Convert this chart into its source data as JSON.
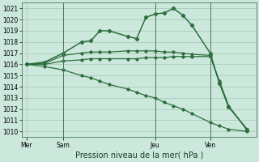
{
  "background_color": "#cce8dc",
  "grid_color": "#aaccbc",
  "line_color": "#2d6e3e",
  "title": "Pression niveau de la mer( hPa )",
  "ylim": [
    1009.5,
    1021.5
  ],
  "yticks": [
    1010,
    1011,
    1012,
    1013,
    1014,
    1015,
    1016,
    1017,
    1018,
    1019,
    1020,
    1021
  ],
  "day_labels": [
    "Mer",
    "Sam",
    "Jeu",
    "Ven"
  ],
  "day_positions": [
    0,
    4,
    14,
    20
  ],
  "xlim": [
    -0.5,
    25
  ],
  "vline_positions": [
    4,
    14,
    20
  ],
  "vline_color": "#4a7a5a",
  "tick_fontsize": 5.5,
  "label_fontsize": 7,
  "series": [
    {
      "x": [
        0,
        2,
        4,
        6,
        7,
        8,
        9,
        11,
        12,
        13,
        14,
        15,
        16,
        17,
        18,
        20,
        21,
        22,
        24
      ],
      "y": [
        1016.0,
        1016.2,
        1017.0,
        1018.0,
        1018.1,
        1019.0,
        1019.0,
        1018.5,
        1018.3,
        1020.2,
        1020.5,
        1020.6,
        1021.0,
        1020.4,
        1019.5,
        1017.0,
        1014.3,
        1012.2,
        1010.2
      ],
      "marker": "D",
      "markersize": 2.2,
      "linewidth": 1.1
    },
    {
      "x": [
        0,
        2,
        4,
        6,
        7,
        8,
        9,
        11,
        12,
        13,
        14,
        15,
        16,
        17,
        18,
        20,
        21,
        22,
        24
      ],
      "y": [
        1016.0,
        1016.1,
        1016.8,
        1017.0,
        1017.1,
        1017.1,
        1017.1,
        1017.2,
        1017.2,
        1017.2,
        1017.2,
        1017.1,
        1017.1,
        1017.0,
        1016.9,
        1016.8,
        1014.4,
        1012.2,
        1010.2
      ],
      "marker": "D",
      "markersize": 1.8,
      "linewidth": 0.9
    },
    {
      "x": [
        0,
        2,
        4,
        6,
        7,
        8,
        9,
        11,
        12,
        13,
        14,
        15,
        16,
        17,
        18,
        20,
        21,
        22,
        24
      ],
      "y": [
        1016.0,
        1016.0,
        1016.3,
        1016.4,
        1016.5,
        1016.5,
        1016.5,
        1016.5,
        1016.5,
        1016.6,
        1016.6,
        1016.6,
        1016.7,
        1016.7,
        1016.7,
        1016.7,
        1014.5,
        1012.3,
        1010.1
      ],
      "marker": "D",
      "markersize": 1.8,
      "linewidth": 0.9
    },
    {
      "x": [
        0,
        2,
        4,
        6,
        7,
        8,
        9,
        11,
        12,
        13,
        14,
        15,
        16,
        17,
        18,
        20,
        21,
        22,
        24
      ],
      "y": [
        1016.0,
        1015.8,
        1015.5,
        1015.0,
        1014.8,
        1014.5,
        1014.2,
        1013.8,
        1013.5,
        1013.2,
        1013.0,
        1012.6,
        1012.3,
        1012.0,
        1011.6,
        1010.8,
        1010.5,
        1010.2,
        1010.0
      ],
      "marker": "D",
      "markersize": 1.8,
      "linewidth": 0.9
    }
  ]
}
